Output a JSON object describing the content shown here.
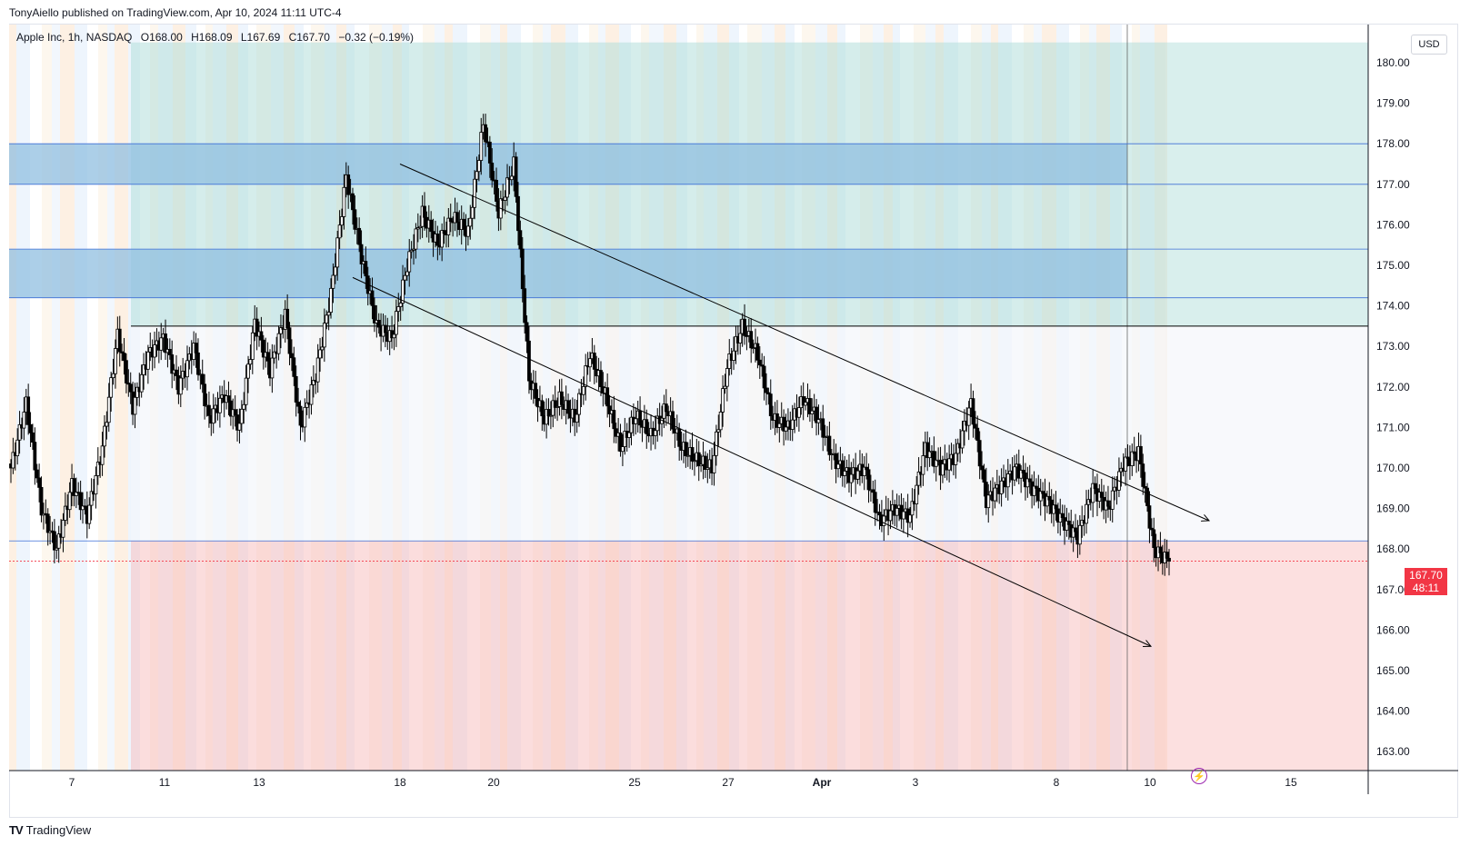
{
  "publisher_line": "TonyAiello published on TradingView.com, Apr 10, 2024 11:11 UTC-4",
  "legend": {
    "symbol": "Apple Inc, 1h, NASDAQ",
    "open": "O168.00",
    "high": "H168.09",
    "low": "L167.69",
    "close": "C167.70",
    "change": "−0.32 (−0.19%)"
  },
  "currency": "USD",
  "last_price": {
    "price": "167.70",
    "countdown": "48:11",
    "color": "#f23645"
  },
  "footer_brand": "TradingView",
  "colors": {
    "up_candle": "#ffffff",
    "down_candle": "#000000",
    "green_zone": "#b2dfdb",
    "red_zone": "#f8bbbb",
    "blue_zone": "#90bfe0",
    "channel_line": "#000000",
    "level_line": "#3d6fd6"
  },
  "chart_data": {
    "type": "candlestick",
    "symbol": "Apple Inc",
    "interval": "1h",
    "exchange": "NASDAQ",
    "y_axis_ticks": [
      180,
      179,
      178,
      177,
      176,
      175,
      174,
      173,
      172,
      171,
      170,
      169,
      168,
      167,
      166,
      165,
      164,
      163
    ],
    "ylim": [
      162.5,
      180.5
    ],
    "x_axis_ticks": [
      "7",
      "11",
      "13",
      "18",
      "20",
      "25",
      "27",
      "Apr",
      "3",
      "8",
      "10",
      "15"
    ],
    "close_path": [
      {
        "x": "Mar 7",
        "close": 170.0
      },
      {
        "x": "Mar 7",
        "close": 171.6
      },
      {
        "x": "Mar 7",
        "close": 169.0
      },
      {
        "x": "Mar 8",
        "close": 168.0
      },
      {
        "x": "Mar 8",
        "close": 169.6
      },
      {
        "x": "Mar 8",
        "close": 168.8
      },
      {
        "x": "Mar 11",
        "close": 170.5
      },
      {
        "x": "Mar 11",
        "close": 173.3
      },
      {
        "x": "Mar 11",
        "close": 171.5
      },
      {
        "x": "Mar 12",
        "close": 172.8
      },
      {
        "x": "Mar 12",
        "close": 173.2
      },
      {
        "x": "Mar 13",
        "close": 172.0
      },
      {
        "x": "Mar 13",
        "close": 173.0
      },
      {
        "x": "Mar 13",
        "close": 171.2
      },
      {
        "x": "Mar 14",
        "close": 171.8
      },
      {
        "x": "Mar 14",
        "close": 171.0
      },
      {
        "x": "Mar 15",
        "close": 173.6
      },
      {
        "x": "Mar 15",
        "close": 172.4
      },
      {
        "x": "Mar 15",
        "close": 173.8
      },
      {
        "x": "Mar 15",
        "close": 171.0
      },
      {
        "x": "Mar 15",
        "close": 172.3
      },
      {
        "x": "Mar 18",
        "close": 174.3
      },
      {
        "x": "Mar 18",
        "close": 177.2
      },
      {
        "x": "Mar 18",
        "close": 175.2
      },
      {
        "x": "Mar 19",
        "close": 173.5
      },
      {
        "x": "Mar 19",
        "close": 173.2
      },
      {
        "x": "Mar 19",
        "close": 175.0
      },
      {
        "x": "Mar 19",
        "close": 176.3
      },
      {
        "x": "Mar 20",
        "close": 175.5
      },
      {
        "x": "Mar 20",
        "close": 176.2
      },
      {
        "x": "Mar 20",
        "close": 175.8
      },
      {
        "x": "Mar 20",
        "close": 178.5
      },
      {
        "x": "Mar 21",
        "close": 176.3
      },
      {
        "x": "Mar 21",
        "close": 177.5
      },
      {
        "x": "Mar 21",
        "close": 172.2
      },
      {
        "x": "Mar 22",
        "close": 171.2
      },
      {
        "x": "Mar 22",
        "close": 171.7
      },
      {
        "x": "Mar 22",
        "close": 171.2
      },
      {
        "x": "Mar 25",
        "close": 172.8
      },
      {
        "x": "Mar 25",
        "close": 171.8
      },
      {
        "x": "Mar 25",
        "close": 170.5
      },
      {
        "x": "Mar 26",
        "close": 171.3
      },
      {
        "x": "Mar 26",
        "close": 170.8
      },
      {
        "x": "Mar 26",
        "close": 171.5
      },
      {
        "x": "Mar 27",
        "close": 170.5
      },
      {
        "x": "Mar 27",
        "close": 170.2
      },
      {
        "x": "Mar 27",
        "close": 170.0
      },
      {
        "x": "Mar 28",
        "close": 172.5
      },
      {
        "x": "Mar 28",
        "close": 173.5
      },
      {
        "x": "Mar 28",
        "close": 172.8
      },
      {
        "x": "Mar 28",
        "close": 171.2
      },
      {
        "x": "Apr 1",
        "close": 171.0
      },
      {
        "x": "Apr 1",
        "close": 171.7
      },
      {
        "x": "Apr 1",
        "close": 171.2
      },
      {
        "x": "Apr 2",
        "close": 170.2
      },
      {
        "x": "Apr 2",
        "close": 169.8
      },
      {
        "x": "Apr 2",
        "close": 170.0
      },
      {
        "x": "Apr 3",
        "close": 168.7
      },
      {
        "x": "Apr 3",
        "close": 169.0
      },
      {
        "x": "Apr 3",
        "close": 168.8
      },
      {
        "x": "Apr 4",
        "close": 170.5
      },
      {
        "x": "Apr 4",
        "close": 170.0
      },
      {
        "x": "Apr 4",
        "close": 170.3
      },
      {
        "x": "Apr 4",
        "close": 171.6
      },
      {
        "x": "Apr 5",
        "close": 169.2
      },
      {
        "x": "Apr 5",
        "close": 169.6
      },
      {
        "x": "Apr 5",
        "close": 170.0
      },
      {
        "x": "Apr 5",
        "close": 169.5
      },
      {
        "x": "Apr 8",
        "close": 169.2
      },
      {
        "x": "Apr 8",
        "close": 168.7
      },
      {
        "x": "Apr 8",
        "close": 168.3
      },
      {
        "x": "Apr 9",
        "close": 169.5
      },
      {
        "x": "Apr 9",
        "close": 169.0
      },
      {
        "x": "Apr 9",
        "close": 170.1
      },
      {
        "x": "Apr 9",
        "close": 170.4
      },
      {
        "x": "Apr 10",
        "close": 168.0
      },
      {
        "x": "Apr 10",
        "close": 167.7
      }
    ],
    "horizontal_levels": [
      178.0,
      177.0,
      175.4,
      174.2,
      173.5,
      168.2
    ],
    "zones": [
      {
        "type": "green",
        "from": 173.5,
        "to": 180.5
      },
      {
        "type": "blue",
        "from": 177.0,
        "to": 178.0
      },
      {
        "type": "blue",
        "from": 174.2,
        "to": 175.4
      },
      {
        "type": "white",
        "from": 168.2,
        "to": 173.5
      },
      {
        "type": "red",
        "from": 162.5,
        "to": 168.2
      }
    ],
    "trend_channel": [
      {
        "from": {
          "x": "Mar 18",
          "price": 177.5
        },
        "to": {
          "x": "Apr 11",
          "price": 168.7
        }
      },
      {
        "from": {
          "x": "Mar 15",
          "price": 174.7
        },
        "to": {
          "x": "Apr 10",
          "price": 165.6
        }
      }
    ],
    "last": {
      "open": 168.0,
      "high": 168.09,
      "low": 167.69,
      "close": 167.7
    }
  }
}
